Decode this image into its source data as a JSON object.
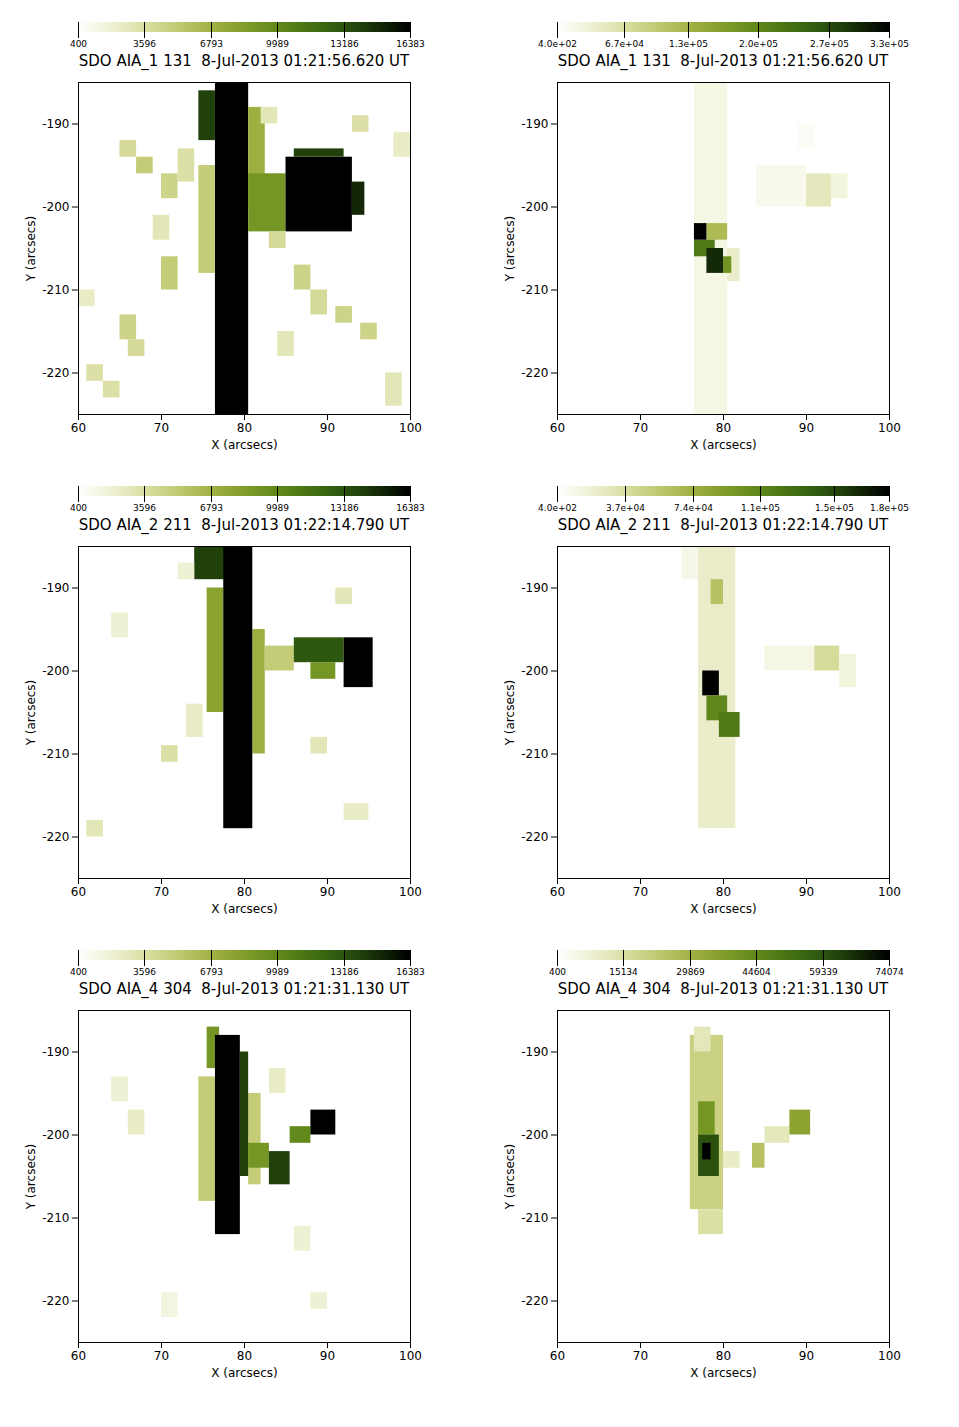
{
  "chart_data": [
    {
      "type": "heatmap",
      "title": "SDO AIA_1 131  8-Jul-2013 01:21:56.620 UT",
      "x_label": "X (arcsecs)",
      "y_label": "Y (arcsecs)",
      "xlim": [
        60,
        100
      ],
      "ylim": [
        -225,
        -185
      ],
      "xticks": [
        60,
        70,
        80,
        90,
        100
      ],
      "yticks": [
        -190,
        -200,
        -210,
        -220
      ],
      "colors": [
        "#ffffff",
        "#dfe3a8",
        "#a4b03a",
        "#5f8a18",
        "#2b5c10",
        "#000000"
      ],
      "colorbar": {
        "range": [
          400,
          16383
        ],
        "ticks": [
          400,
          3596,
          6793,
          9989,
          13186,
          16383
        ]
      },
      "cells": [
        [
          76.5,
          80.5,
          -225,
          -185,
          16383
        ],
        [
          74.5,
          76.5,
          -192,
          -186,
          14000
        ],
        [
          74.5,
          76.5,
          -208,
          -195,
          5000
        ],
        [
          80.5,
          82.5,
          -200,
          -188,
          7000
        ],
        [
          80.5,
          85,
          -203,
          -196,
          9000
        ],
        [
          85,
          93,
          -203,
          -194,
          16383
        ],
        [
          86,
          92,
          -194,
          -193,
          14000
        ],
        [
          93,
          94.5,
          -201,
          -197,
          15000
        ],
        [
          65,
          67,
          -194,
          -192,
          4000
        ],
        [
          67,
          69,
          -196,
          -194,
          5000
        ],
        [
          70,
          72,
          -199,
          -196,
          4500
        ],
        [
          72,
          74,
          -197,
          -193,
          3500
        ],
        [
          69,
          71,
          -204,
          -201,
          3000
        ],
        [
          70,
          72,
          -210,
          -206,
          5000
        ],
        [
          65,
          67,
          -216,
          -213,
          4500
        ],
        [
          66,
          68,
          -218,
          -216,
          4000
        ],
        [
          61,
          63,
          -221,
          -219,
          3500
        ],
        [
          63,
          65,
          -223,
          -221,
          3500
        ],
        [
          83,
          85,
          -205,
          -203,
          4000
        ],
        [
          86,
          88,
          -210,
          -207,
          4500
        ],
        [
          88,
          90,
          -213,
          -210,
          4000
        ],
        [
          91,
          93,
          -214,
          -212,
          4500
        ],
        [
          94,
          96,
          -216,
          -214,
          4500
        ],
        [
          84,
          86,
          -218,
          -215,
          3000
        ],
        [
          82,
          84,
          -190,
          -188,
          3000
        ],
        [
          93,
          95,
          -191,
          -189,
          3500
        ],
        [
          97,
          99,
          -224,
          -220,
          3000
        ],
        [
          98,
          100,
          -194,
          -191,
          2500
        ],
        [
          60,
          62,
          -212,
          -210,
          2500
        ]
      ]
    },
    {
      "type": "heatmap",
      "title": "SDO AIA_1 131  8-Jul-2013 01:21:56.620 UT",
      "x_label": "X (arcsecs)",
      "y_label": "Y (arcsecs)",
      "xlim": [
        60,
        100
      ],
      "ylim": [
        -225,
        -185
      ],
      "xticks": [
        60,
        70,
        80,
        90,
        100
      ],
      "yticks": [
        -190,
        -200,
        -210,
        -220
      ],
      "colors": [
        "#ffffff",
        "#dfe3a8",
        "#a4b03a",
        "#5f8a18",
        "#2b5c10",
        "#000000"
      ],
      "colorbar": {
        "range": [
          400,
          330000
        ],
        "ticks": [
          {
            "value": 400,
            "label": "4.0e+02"
          },
          {
            "value": 67000,
            "label": "6.7e+04"
          },
          {
            "value": 130000,
            "label": "1.3e+05"
          },
          {
            "value": 200000,
            "label": "2.0e+05"
          },
          {
            "value": 270000,
            "label": "2.7e+05"
          },
          {
            "value": 330000,
            "label": "3.3e+05"
          }
        ]
      },
      "cells": [
        [
          76.5,
          80.5,
          -225,
          -185,
          20000
        ],
        [
          80.5,
          82,
          -209,
          -205,
          40000
        ],
        [
          78,
          80.5,
          -204,
          -202,
          120000
        ],
        [
          76.5,
          79,
          -206,
          -204,
          220000
        ],
        [
          76.5,
          78,
          -204,
          -202,
          330000
        ],
        [
          78,
          80,
          -208,
          -205,
          300000
        ],
        [
          80,
          81,
          -208,
          -206,
          180000
        ],
        [
          84,
          90,
          -200,
          -195,
          15000
        ],
        [
          90,
          93,
          -200,
          -196,
          50000
        ],
        [
          93,
          95,
          -199,
          -196,
          25000
        ],
        [
          89,
          91,
          -193,
          -190,
          8000
        ]
      ]
    },
    {
      "type": "heatmap",
      "title": "SDO AIA_2 211  8-Jul-2013 01:22:14.790 UT",
      "x_label": "X (arcsecs)",
      "y_label": "Y (arcsecs)",
      "xlim": [
        60,
        100
      ],
      "ylim": [
        -225,
        -185
      ],
      "xticks": [
        60,
        70,
        80,
        90,
        100
      ],
      "yticks": [
        -190,
        -200,
        -210,
        -220
      ],
      "colors": [
        "#ffffff",
        "#dfe3a8",
        "#a4b03a",
        "#5f8a18",
        "#2b5c10",
        "#000000"
      ],
      "colorbar": {
        "range": [
          400,
          16383
        ],
        "ticks": [
          400,
          3596,
          6793,
          9989,
          13186,
          16383
        ]
      },
      "cells": [
        [
          74,
          78,
          -189,
          -185,
          14000
        ],
        [
          75.5,
          77.5,
          -205,
          -190,
          8000
        ],
        [
          81,
          82.5,
          -210,
          -195,
          7000
        ],
        [
          77.5,
          81,
          -219,
          -185,
          16383
        ],
        [
          82.5,
          86,
          -200,
          -197,
          5000
        ],
        [
          86,
          92,
          -199,
          -196,
          13000
        ],
        [
          88,
          91,
          -201,
          -199,
          9000
        ],
        [
          92,
          95.5,
          -202,
          -196,
          16383
        ],
        [
          72,
          74,
          -189,
          -187,
          2000
        ],
        [
          70,
          72,
          -211,
          -209,
          3500
        ],
        [
          61,
          63,
          -220,
          -218,
          3000
        ],
        [
          91,
          93,
          -192,
          -190,
          3000
        ],
        [
          88,
          90,
          -210,
          -208,
          3000
        ],
        [
          92,
          95,
          -218,
          -216,
          2500
        ],
        [
          64,
          66,
          -196,
          -193,
          2000
        ],
        [
          73,
          75,
          -208,
          -204,
          2500
        ]
      ]
    },
    {
      "type": "heatmap",
      "title": "SDO AIA_2 211  8-Jul-2013 01:22:14.790 UT",
      "x_label": "X (arcsecs)",
      "y_label": "Y (arcsecs)",
      "xlim": [
        60,
        100
      ],
      "ylim": [
        -225,
        -185
      ],
      "xticks": [
        60,
        70,
        80,
        90,
        100
      ],
      "yticks": [
        -190,
        -200,
        -210,
        -220
      ],
      "colors": [
        "#ffffff",
        "#dfe3a8",
        "#a4b03a",
        "#5f8a18",
        "#2b5c10",
        "#000000"
      ],
      "colorbar": {
        "range": [
          400,
          180000
        ],
        "ticks": [
          {
            "value": 400,
            "label": "4.0e+02"
          },
          {
            "value": 37000,
            "label": "3.7e+04"
          },
          {
            "value": 74000,
            "label": "7.4e+04"
          },
          {
            "value": 110000,
            "label": "1.1e+05"
          },
          {
            "value": 150000,
            "label": "1.5e+05"
          },
          {
            "value": 180000,
            "label": "1.8e+05"
          }
        ]
      },
      "cells": [
        [
          75,
          77,
          -189,
          -185,
          10000
        ],
        [
          77,
          81.5,
          -219,
          -185,
          22000
        ],
        [
          78.5,
          80,
          -192,
          -189,
          60000
        ],
        [
          77.5,
          79.5,
          -203,
          -200,
          180000
        ],
        [
          78,
          80.5,
          -206,
          -203,
          110000
        ],
        [
          79.5,
          82,
          -208,
          -205,
          120000
        ],
        [
          85,
          91,
          -200,
          -197,
          12000
        ],
        [
          91,
          94,
          -200,
          -197,
          40000
        ],
        [
          94,
          96,
          -202,
          -198,
          15000
        ]
      ]
    },
    {
      "type": "heatmap",
      "title": "SDO AIA_4 304  8-Jul-2013 01:21:31.130 UT",
      "x_label": "X (arcsecs)",
      "y_label": "Y (arcsecs)",
      "xlim": [
        60,
        100
      ],
      "ylim": [
        -225,
        -185
      ],
      "xticks": [
        60,
        70,
        80,
        90,
        100
      ],
      "yticks": [
        -190,
        -200,
        -210,
        -220
      ],
      "colors": [
        "#ffffff",
        "#dfe3a8",
        "#a4b03a",
        "#5f8a18",
        "#2b5c10",
        "#000000"
      ],
      "colorbar": {
        "range": [
          400,
          16383
        ],
        "ticks": [
          400,
          3596,
          6793,
          9989,
          13186,
          16383
        ]
      },
      "cells": [
        [
          74.5,
          76.5,
          -208,
          -193,
          5000
        ],
        [
          80.5,
          82,
          -206,
          -195,
          5000
        ],
        [
          75.5,
          77,
          -192,
          -187,
          9000
        ],
        [
          76.5,
          79.5,
          -212,
          -188,
          16383
        ],
        [
          79.5,
          80.5,
          -205,
          -190,
          14000
        ],
        [
          80.5,
          83,
          -204,
          -201,
          9000
        ],
        [
          83,
          85.5,
          -206,
          -202,
          14000
        ],
        [
          85.5,
          88,
          -201,
          -199,
          10000
        ],
        [
          88,
          91,
          -200,
          -197,
          16383
        ],
        [
          66,
          68,
          -200,
          -197,
          2500
        ],
        [
          64,
          66,
          -196,
          -193,
          2000
        ],
        [
          83,
          85,
          -195,
          -192,
          2500
        ],
        [
          86,
          88,
          -214,
          -211,
          2000
        ],
        [
          88,
          90,
          -221,
          -219,
          2000
        ],
        [
          70,
          72,
          -222,
          -219,
          1500
        ]
      ]
    },
    {
      "type": "heatmap",
      "title": "SDO AIA_4 304  8-Jul-2013 01:21:31.130 UT",
      "x_label": "X (arcsecs)",
      "y_label": "Y (arcsecs)",
      "xlim": [
        60,
        100
      ],
      "ylim": [
        -225,
        -185
      ],
      "xticks": [
        60,
        70,
        80,
        90,
        100
      ],
      "yticks": [
        -190,
        -200,
        -210,
        -220
      ],
      "colors": [
        "#ffffff",
        "#dfe3a8",
        "#a4b03a",
        "#5f8a18",
        "#2b5c10",
        "#000000"
      ],
      "colorbar": {
        "range": [
          400,
          74074
        ],
        "ticks": [
          400,
          15134,
          29869,
          44604,
          59339,
          74074
        ]
      },
      "cells": [
        [
          76,
          80,
          -209,
          -188,
          20000
        ],
        [
          76.5,
          78.5,
          -190,
          -187,
          12000
        ],
        [
          77,
          79,
          -200,
          -196,
          40000
        ],
        [
          77,
          79.5,
          -205,
          -200,
          60000
        ],
        [
          77.5,
          78.5,
          -203,
          -201,
          74074
        ],
        [
          77,
          80,
          -212,
          -209,
          15000
        ],
        [
          80,
          82,
          -204,
          -202,
          10000
        ],
        [
          83.5,
          85,
          -204,
          -201,
          25000
        ],
        [
          85,
          88,
          -201,
          -199,
          12000
        ],
        [
          88,
          90.5,
          -200,
          -197,
          35000
        ]
      ]
    }
  ]
}
